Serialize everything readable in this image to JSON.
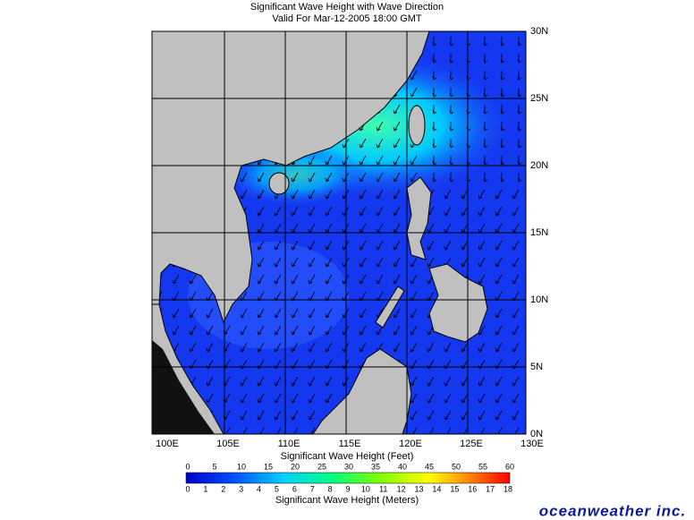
{
  "header": {
    "title": "Significant Wave Height with Wave Direction",
    "subtitle": "Valid For Mar-12-2005 18:00 GMT"
  },
  "map": {
    "lat_labels": [
      "30N",
      "25N",
      "20N",
      "15N",
      "10N",
      "5N",
      "0N"
    ],
    "lon_labels": [
      "100E",
      "105E",
      "110E",
      "115E",
      "120E",
      "125E",
      "130E"
    ]
  },
  "legend": {
    "feet_title": "Significant Wave Height (Feet)",
    "feet_ticks": [
      0,
      5,
      10,
      15,
      20,
      25,
      30,
      35,
      40,
      45,
      50,
      55,
      60
    ],
    "meters_ticks": [
      0,
      1,
      2,
      3,
      4,
      5,
      6,
      7,
      8,
      9,
      10,
      11,
      12,
      13,
      14,
      15,
      16,
      17,
      18
    ],
    "meters_title": "Significant Wave Height (Meters)"
  },
  "logo": "oceanweather inc."
}
